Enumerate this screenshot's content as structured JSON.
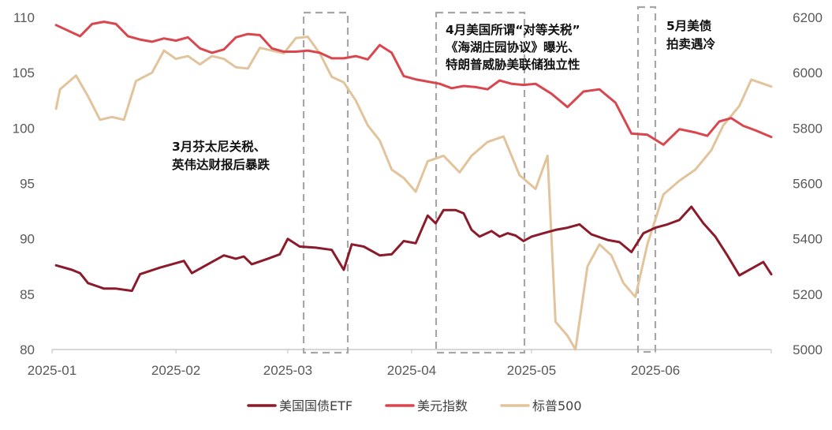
{
  "chart_data": {
    "type": "line",
    "title": "",
    "x_axis": {
      "ticks": [
        "2025-01",
        "2025-02",
        "2025-03",
        "2025-04",
        "2025-05",
        "2025-06"
      ],
      "range": [
        "2025-01-01",
        "2025-06-30"
      ]
    },
    "y_left": {
      "ticks": [
        "80",
        "85",
        "90",
        "95",
        "100",
        "105",
        "110"
      ],
      "range": [
        80,
        110
      ]
    },
    "y_right": {
      "ticks": [
        "5000",
        "5200",
        "5400",
        "5600",
        "5800",
        "6000",
        "6200"
      ],
      "range": [
        5000,
        6200
      ]
    },
    "grid": false,
    "legend_position": "bottom",
    "series": [
      {
        "name": "美国国债ETF",
        "axis": "left",
        "color": "#8B1A2B",
        "points": [
          [
            "2025-01-02",
            87.6
          ],
          [
            "2025-01-06",
            87.2
          ],
          [
            "2025-01-08",
            86.9
          ],
          [
            "2025-01-10",
            86.0
          ],
          [
            "2025-01-14",
            85.5
          ],
          [
            "2025-01-17",
            85.5
          ],
          [
            "2025-01-21",
            85.3
          ],
          [
            "2025-01-23",
            86.8
          ],
          [
            "2025-01-28",
            87.4
          ],
          [
            "2025-02-03",
            88.0
          ],
          [
            "2025-02-05",
            86.9
          ],
          [
            "2025-02-10",
            87.9
          ],
          [
            "2025-02-13",
            88.5
          ],
          [
            "2025-02-16",
            88.2
          ],
          [
            "2025-02-18",
            88.4
          ],
          [
            "2025-02-20",
            87.7
          ],
          [
            "2025-02-24",
            88.2
          ],
          [
            "2025-02-27",
            88.6
          ],
          [
            "2025-03-01",
            90.0
          ],
          [
            "2025-03-04",
            89.3
          ],
          [
            "2025-03-08",
            89.2
          ],
          [
            "2025-03-12",
            89.0
          ],
          [
            "2025-03-15",
            87.2
          ],
          [
            "2025-03-17",
            89.5
          ],
          [
            "2025-03-20",
            89.3
          ],
          [
            "2025-03-24",
            88.5
          ],
          [
            "2025-03-27",
            88.6
          ],
          [
            "2025-03-30",
            89.8
          ],
          [
            "2025-04-02",
            89.6
          ],
          [
            "2025-04-05",
            92.1
          ],
          [
            "2025-04-07",
            91.4
          ],
          [
            "2025-04-09",
            92.6
          ],
          [
            "2025-04-12",
            92.6
          ],
          [
            "2025-04-14",
            92.3
          ],
          [
            "2025-04-16",
            90.8
          ],
          [
            "2025-04-18",
            90.2
          ],
          [
            "2025-04-21",
            90.7
          ],
          [
            "2025-04-23",
            90.2
          ],
          [
            "2025-04-25",
            90.5
          ],
          [
            "2025-04-27",
            90.3
          ],
          [
            "2025-04-29",
            89.8
          ],
          [
            "2025-05-01",
            90.2
          ],
          [
            "2025-05-04",
            90.5
          ],
          [
            "2025-05-07",
            90.8
          ],
          [
            "2025-05-10",
            91.0
          ],
          [
            "2025-05-13",
            91.3
          ],
          [
            "2025-05-16",
            90.4
          ],
          [
            "2025-05-20",
            89.9
          ],
          [
            "2025-05-23",
            89.7
          ],
          [
            "2025-05-26",
            88.8
          ],
          [
            "2025-05-29",
            90.5
          ],
          [
            "2025-06-01",
            91.0
          ],
          [
            "2025-06-04",
            91.3
          ],
          [
            "2025-06-07",
            91.7
          ],
          [
            "2025-06-10",
            92.9
          ],
          [
            "2025-06-13",
            91.4
          ],
          [
            "2025-06-16",
            90.2
          ],
          [
            "2025-06-19",
            88.5
          ],
          [
            "2025-06-22",
            86.7
          ],
          [
            "2025-06-25",
            87.3
          ],
          [
            "2025-06-28",
            87.9
          ],
          [
            "2025-06-30",
            86.8
          ]
        ]
      },
      {
        "name": "美元指数",
        "axis": "left",
        "color": "#D9464E",
        "points": [
          [
            "2025-01-02",
            109.3
          ],
          [
            "2025-01-05",
            108.8
          ],
          [
            "2025-01-08",
            108.3
          ],
          [
            "2025-01-11",
            109.4
          ],
          [
            "2025-01-14",
            109.6
          ],
          [
            "2025-01-17",
            109.4
          ],
          [
            "2025-01-20",
            108.3
          ],
          [
            "2025-01-23",
            108.0
          ],
          [
            "2025-01-26",
            107.8
          ],
          [
            "2025-01-29",
            108.1
          ],
          [
            "2025-02-01",
            107.9
          ],
          [
            "2025-02-04",
            108.2
          ],
          [
            "2025-02-07",
            107.2
          ],
          [
            "2025-02-10",
            106.8
          ],
          [
            "2025-02-13",
            107.1
          ],
          [
            "2025-02-16",
            108.2
          ],
          [
            "2025-02-19",
            108.5
          ],
          [
            "2025-02-22",
            108.4
          ],
          [
            "2025-02-25",
            107.2
          ],
          [
            "2025-02-28",
            106.9
          ],
          [
            "2025-03-03",
            106.9
          ],
          [
            "2025-03-06",
            107.0
          ],
          [
            "2025-03-09",
            106.8
          ],
          [
            "2025-03-12",
            106.3
          ],
          [
            "2025-03-15",
            106.3
          ],
          [
            "2025-03-18",
            106.5
          ],
          [
            "2025-03-21",
            106.2
          ],
          [
            "2025-03-24",
            107.5
          ],
          [
            "2025-03-27",
            106.8
          ],
          [
            "2025-03-30",
            104.7
          ],
          [
            "2025-04-02",
            104.4
          ],
          [
            "2025-04-05",
            104.2
          ],
          [
            "2025-04-08",
            104.0
          ],
          [
            "2025-04-11",
            103.6
          ],
          [
            "2025-04-14",
            103.8
          ],
          [
            "2025-04-17",
            103.7
          ],
          [
            "2025-04-20",
            103.5
          ],
          [
            "2025-04-23",
            104.3
          ],
          [
            "2025-04-26",
            104.0
          ],
          [
            "2025-04-29",
            103.9
          ],
          [
            "2025-05-02",
            104.0
          ],
          [
            "2025-05-06",
            103.1
          ],
          [
            "2025-05-10",
            101.9
          ],
          [
            "2025-05-14",
            103.3
          ],
          [
            "2025-05-18",
            103.5
          ],
          [
            "2025-05-22",
            102.3
          ],
          [
            "2025-05-26",
            99.5
          ],
          [
            "2025-05-30",
            99.4
          ],
          [
            "2025-06-03",
            98.5
          ],
          [
            "2025-06-07",
            99.9
          ],
          [
            "2025-06-11",
            99.6
          ],
          [
            "2025-06-14",
            99.3
          ],
          [
            "2025-06-17",
            100.6
          ],
          [
            "2025-06-20",
            100.9
          ],
          [
            "2025-06-23",
            100.2
          ],
          [
            "2025-06-26",
            99.8
          ],
          [
            "2025-06-30",
            99.2
          ]
        ]
      },
      {
        "name": "标普500",
        "axis": "right",
        "color": "#E2C49C",
        "points": [
          [
            "2025-01-02",
            5870
          ],
          [
            "2025-01-03",
            5940
          ],
          [
            "2025-01-07",
            5990
          ],
          [
            "2025-01-10",
            5915
          ],
          [
            "2025-01-13",
            5830
          ],
          [
            "2025-01-16",
            5840
          ],
          [
            "2025-01-19",
            5830
          ],
          [
            "2025-01-22",
            5970
          ],
          [
            "2025-01-26",
            6000
          ],
          [
            "2025-01-29",
            6080
          ],
          [
            "2025-02-01",
            6050
          ],
          [
            "2025-02-04",
            6060
          ],
          [
            "2025-02-07",
            6030
          ],
          [
            "2025-02-10",
            6060
          ],
          [
            "2025-02-13",
            6050
          ],
          [
            "2025-02-16",
            6020
          ],
          [
            "2025-02-19",
            6015
          ],
          [
            "2025-02-22",
            6090
          ],
          [
            "2025-02-25",
            6080
          ],
          [
            "2025-02-28",
            6070
          ],
          [
            "2025-03-03",
            6125
          ],
          [
            "2025-03-06",
            6130
          ],
          [
            "2025-03-09",
            6070
          ],
          [
            "2025-03-12",
            5985
          ],
          [
            "2025-03-15",
            5965
          ],
          [
            "2025-03-18",
            5900
          ],
          [
            "2025-03-21",
            5810
          ],
          [
            "2025-03-24",
            5755
          ],
          [
            "2025-03-27",
            5650
          ],
          [
            "2025-03-30",
            5620
          ],
          [
            "2025-04-02",
            5570
          ],
          [
            "2025-04-05",
            5680
          ],
          [
            "2025-04-09",
            5700
          ],
          [
            "2025-04-13",
            5640
          ],
          [
            "2025-04-16",
            5700
          ],
          [
            "2025-04-20",
            5750
          ],
          [
            "2025-04-24",
            5770
          ],
          [
            "2025-04-28",
            5630
          ],
          [
            "2025-05-02",
            5580
          ],
          [
            "2025-05-05",
            5700
          ],
          [
            "2025-05-07",
            5100
          ],
          [
            "2025-05-10",
            5050
          ],
          [
            "2025-05-12",
            5000
          ],
          [
            "2025-05-15",
            5300
          ],
          [
            "2025-05-18",
            5380
          ],
          [
            "2025-05-21",
            5340
          ],
          [
            "2025-05-24",
            5240
          ],
          [
            "2025-05-27",
            5190
          ],
          [
            "2025-05-30",
            5380
          ],
          [
            "2025-06-03",
            5560
          ],
          [
            "2025-06-07",
            5610
          ],
          [
            "2025-06-11",
            5650
          ],
          [
            "2025-06-15",
            5720
          ],
          [
            "2025-06-18",
            5810
          ],
          [
            "2025-06-22",
            5880
          ],
          [
            "2025-06-25",
            5975
          ],
          [
            "2025-06-28",
            5960
          ],
          [
            "2025-06-30",
            5950
          ]
        ]
      }
    ],
    "annotations": [
      {
        "lines": [
          "3月芬太尼关税、",
          "英伟达财报后暴跌"
        ]
      },
      {
        "lines": [
          "4月美国所谓“对等关税”",
          "《海湖庄园协议》曝光、",
          "特朗普威胁美联储独立性"
        ]
      },
      {
        "lines": [
          "5月美债",
          "拍卖遇冷"
        ]
      }
    ]
  }
}
